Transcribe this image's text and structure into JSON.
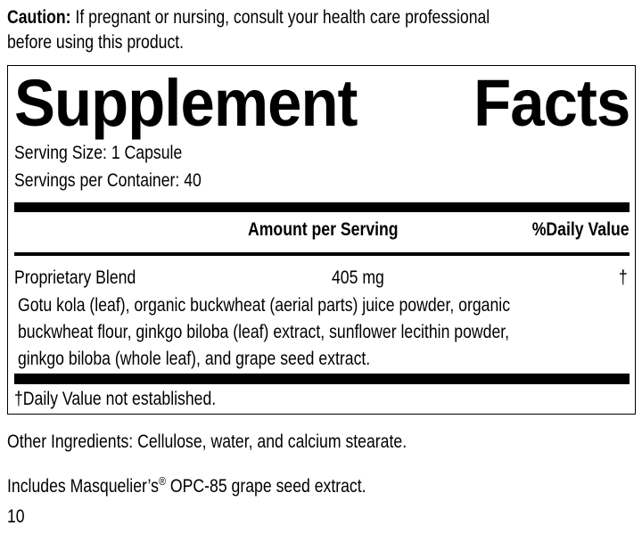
{
  "caution": {
    "label": "Caution:",
    "line1": "If pregnant or nursing, consult your health care professional",
    "line2": "before using this product."
  },
  "facts": {
    "title_word1": "Supplement",
    "title_word2": "Facts",
    "serving_size": "Serving Size: 1 Capsule",
    "servings_per_container": "Servings per Container: 40",
    "header_amount": "Amount per Serving",
    "header_dv": "%Daily Value",
    "rows": [
      {
        "name": "Proprietary Blend",
        "amount": "405 mg",
        "dv": "†"
      }
    ],
    "blend_lines": [
      "Gotu kola (leaf), organic buckwheat (aerial parts) juice powder, organic",
      "buckwheat flour, ginkgo biloba (leaf) extract, sunflower lecithin powder,",
      "ginkgo biloba (whole leaf), and grape seed extract."
    ],
    "footnote": "†Daily Value not established."
  },
  "other_ingredients": "Other Ingredients: Cellulose, water, and calcium stearate.",
  "includes_prefix": "Includes Masquelier’s",
  "includes_reg": "®",
  "includes_suffix": " OPC-85 grape seed extract.",
  "page_number": "10"
}
